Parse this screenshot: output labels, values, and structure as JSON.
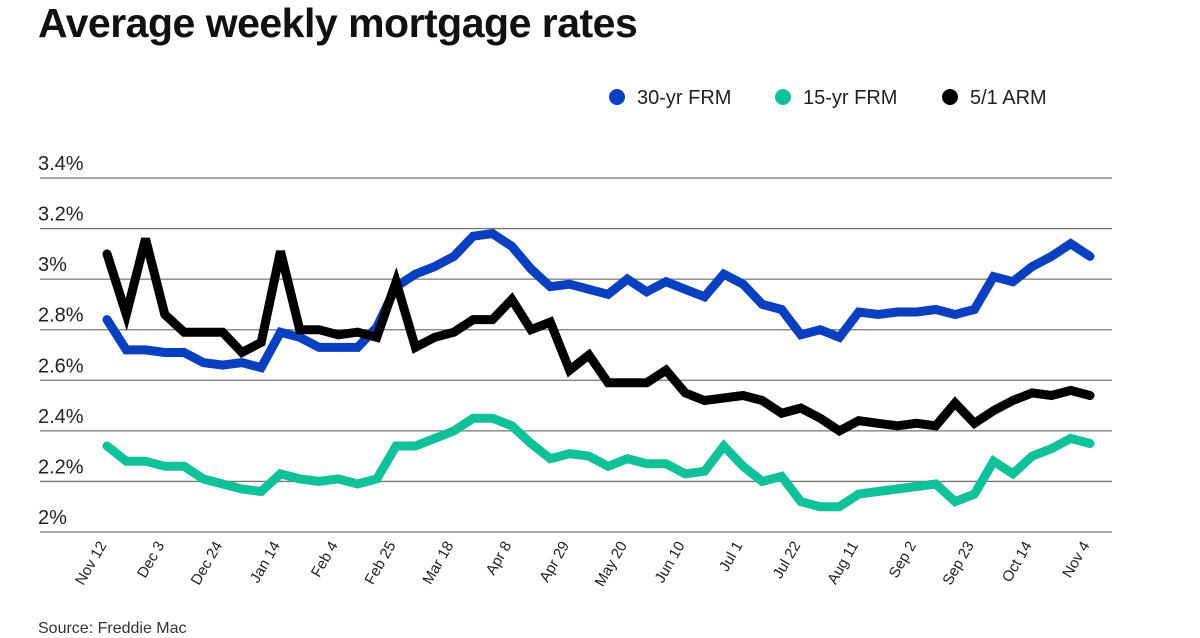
{
  "chart_data": {
    "type": "line",
    "title": "Average weekly mortgage rates",
    "source": "Source: Freddie Mac",
    "xlabel": "",
    "ylabel": "",
    "ylim": [
      2.0,
      3.4
    ],
    "yticks": [
      2.0,
      2.2,
      2.4,
      2.6,
      2.8,
      3.0,
      3.2,
      3.4
    ],
    "ytick_labels": [
      "2%",
      "2.2%",
      "2.4%",
      "2.6%",
      "2.8%",
      "3%",
      "3.2%",
      "3.4%"
    ],
    "grid": true,
    "legend_position": "top-right",
    "x_tick_labels": [
      "Nov 12",
      "Dec 3",
      "Dec 24",
      "Jan 14",
      "Feb 4",
      "Feb 25",
      "Mar 18",
      "Apr 8",
      "Apr 29",
      "May 20",
      "Jun 10",
      "Jul 1",
      "Jul 22",
      "Aug 11",
      "Sep 2",
      "Sep 23",
      "Oct 14",
      "Nov 4"
    ],
    "x_tick_every": 3,
    "series": [
      {
        "name": "30-yr FRM",
        "color": "#0a3fbf",
        "values": [
          2.84,
          2.72,
          2.72,
          2.71,
          2.71,
          2.67,
          2.66,
          2.67,
          2.65,
          2.79,
          2.77,
          2.73,
          2.73,
          2.73,
          2.81,
          2.97,
          3.02,
          3.05,
          3.09,
          3.17,
          3.18,
          3.13,
          3.04,
          2.97,
          2.98,
          2.96,
          2.94,
          3.0,
          2.95,
          2.99,
          2.96,
          2.93,
          3.02,
          2.98,
          2.9,
          2.88,
          2.78,
          2.8,
          2.77,
          2.87,
          2.86,
          2.87,
          2.87,
          2.88,
          2.86,
          2.88,
          3.01,
          2.99,
          3.05,
          3.09,
          3.14,
          3.09
        ]
      },
      {
        "name": "15-yr FRM",
        "color": "#10c19a",
        "values": [
          2.34,
          2.28,
          2.28,
          2.26,
          2.26,
          2.21,
          2.19,
          2.17,
          2.16,
          2.23,
          2.21,
          2.2,
          2.21,
          2.19,
          2.21,
          2.34,
          2.34,
          2.37,
          2.4,
          2.45,
          2.45,
          2.42,
          2.35,
          2.29,
          2.31,
          2.3,
          2.26,
          2.29,
          2.27,
          2.27,
          2.23,
          2.24,
          2.34,
          2.26,
          2.2,
          2.22,
          2.12,
          2.1,
          2.1,
          2.15,
          2.16,
          2.17,
          2.18,
          2.19,
          2.12,
          2.15,
          2.28,
          2.23,
          2.3,
          2.33,
          2.37,
          2.35
        ]
      },
      {
        "name": "5/1 ARM",
        "color": "#000000",
        "values": [
          3.1,
          2.86,
          3.16,
          2.86,
          2.79,
          2.79,
          2.79,
          2.71,
          2.75,
          3.11,
          2.8,
          2.8,
          2.78,
          2.79,
          2.77,
          2.99,
          2.73,
          2.77,
          2.79,
          2.84,
          2.84,
          2.92,
          2.8,
          2.83,
          2.64,
          2.7,
          2.59,
          2.59,
          2.59,
          2.64,
          2.55,
          2.52,
          2.53,
          2.54,
          2.52,
          2.47,
          2.49,
          2.45,
          2.4,
          2.44,
          2.43,
          2.42,
          2.43,
          2.42,
          2.51,
          2.43,
          2.48,
          2.52,
          2.55,
          2.54,
          2.56,
          2.54
        ]
      }
    ]
  }
}
